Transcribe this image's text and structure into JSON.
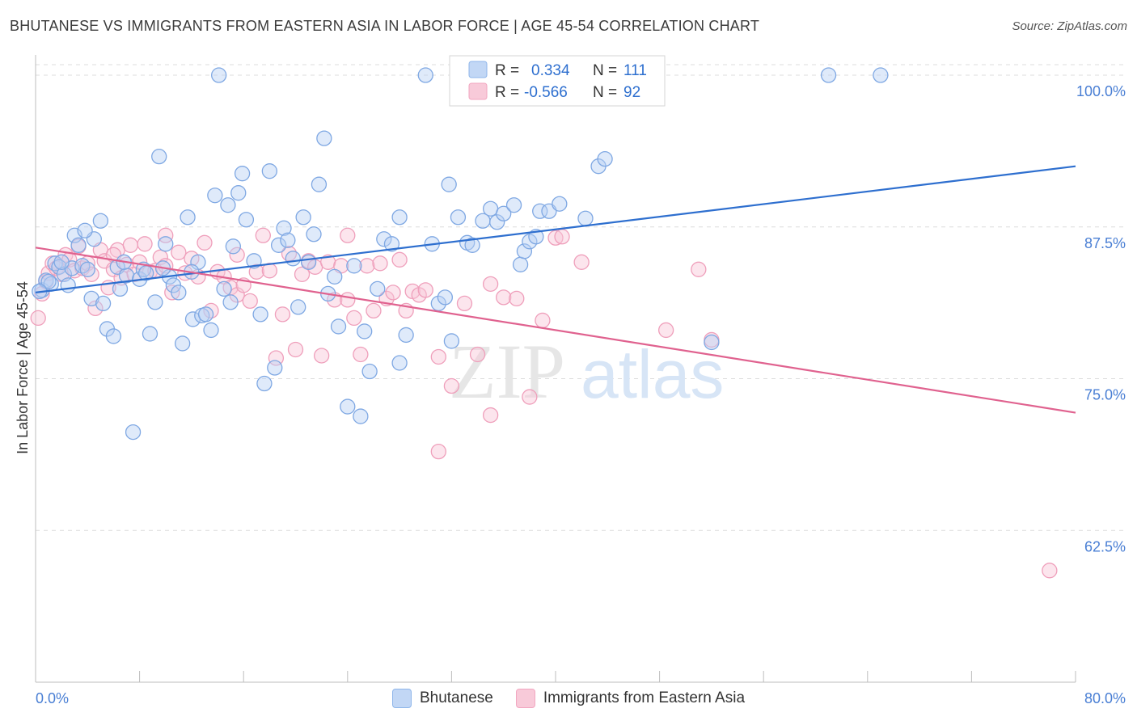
{
  "title": "BHUTANESE VS IMMIGRANTS FROM EASTERN ASIA IN LABOR FORCE | AGE 45-54 CORRELATION CHART",
  "source": "Source: ZipAtlas.com",
  "watermark": {
    "zip": "ZIP",
    "atlas": "atlas"
  },
  "colors": {
    "blue": "#8fb6ea",
    "blue_line": "#2e6fcf",
    "pink": "#f2a6c0",
    "pink_line": "#e0628f",
    "axis_text_blue": "#4a7fd4"
  },
  "legend": {
    "rows": [
      {
        "r_label": "R =",
        "r_value": "0.334",
        "n_label": "N =",
        "n_value": "111"
      },
      {
        "r_label": "R =",
        "r_value": "-0.566",
        "n_label": "N =",
        "n_value": "92"
      }
    ]
  },
  "bottom_legend": [
    "Bhutanese",
    "Immigrants from Eastern Asia"
  ],
  "chart_data": {
    "type": "scatter",
    "ylabel": "In Labor Force | Age 45-54",
    "xlim": [
      0,
      80
    ],
    "ylim": [
      50,
      101
    ],
    "x_tick_labels": [
      "0.0%",
      "80.0%"
    ],
    "y_tick_values": [
      62.5,
      75.0,
      87.5,
      100.0
    ],
    "y_tick_labels": [
      "62.5%",
      "75.0%",
      "87.5%",
      "100.0%"
    ],
    "series": [
      {
        "name": "Bhutanese",
        "trend": {
          "x": [
            0,
            80
          ],
          "y": [
            82.1,
            92.5
          ]
        },
        "points": [
          [
            0.5,
            82.3
          ],
          [
            0.8,
            83.1
          ],
          [
            1.2,
            82.8
          ],
          [
            1.5,
            84.5
          ],
          [
            1.8,
            84.2
          ],
          [
            2.2,
            83.6
          ],
          [
            2.5,
            82.7
          ],
          [
            2.8,
            84.1
          ],
          [
            3.0,
            86.8
          ],
          [
            3.3,
            86.0
          ],
          [
            3.6,
            84.3
          ],
          [
            4.0,
            84.0
          ],
          [
            4.3,
            81.6
          ],
          [
            4.5,
            86.5
          ],
          [
            5.0,
            88.0
          ],
          [
            5.2,
            81.2
          ],
          [
            5.5,
            79.1
          ],
          [
            6.0,
            78.5
          ],
          [
            6.3,
            84.2
          ],
          [
            6.5,
            82.4
          ],
          [
            7.0,
            83.5
          ],
          [
            7.5,
            70.6
          ],
          [
            8.0,
            83.2
          ],
          [
            8.3,
            84.0
          ],
          [
            8.8,
            78.7
          ],
          [
            9.2,
            81.3
          ],
          [
            9.5,
            93.3
          ],
          [
            10.0,
            86.1
          ],
          [
            10.3,
            83.4
          ],
          [
            10.6,
            82.7
          ],
          [
            11.0,
            82.1
          ],
          [
            11.3,
            77.9
          ],
          [
            11.7,
            88.3
          ],
          [
            12.1,
            79.9
          ],
          [
            12.5,
            84.6
          ],
          [
            12.8,
            80.2
          ],
          [
            13.1,
            80.3
          ],
          [
            13.5,
            79.0
          ],
          [
            13.8,
            90.1
          ],
          [
            14.1,
            100.0
          ],
          [
            14.5,
            82.4
          ],
          [
            14.8,
            89.3
          ],
          [
            15.2,
            85.9
          ],
          [
            15.6,
            90.3
          ],
          [
            15.9,
            91.9
          ],
          [
            16.2,
            88.1
          ],
          [
            16.8,
            84.7
          ],
          [
            17.3,
            80.3
          ],
          [
            17.6,
            74.6
          ],
          [
            18.0,
            92.1
          ],
          [
            18.4,
            75.9
          ],
          [
            18.7,
            86.0
          ],
          [
            19.1,
            87.4
          ],
          [
            19.4,
            86.4
          ],
          [
            19.8,
            84.9
          ],
          [
            20.2,
            80.9
          ],
          [
            20.6,
            88.3
          ],
          [
            21.0,
            84.6
          ],
          [
            21.4,
            86.9
          ],
          [
            21.8,
            91.0
          ],
          [
            22.2,
            94.8
          ],
          [
            22.5,
            82.0
          ],
          [
            23.0,
            83.4
          ],
          [
            23.3,
            79.3
          ],
          [
            24.0,
            72.7
          ],
          [
            24.5,
            84.3
          ],
          [
            25.0,
            71.9
          ],
          [
            25.3,
            78.9
          ],
          [
            25.7,
            75.6
          ],
          [
            26.3,
            82.4
          ],
          [
            26.8,
            86.5
          ],
          [
            27.4,
            86.1
          ],
          [
            28.0,
            76.3
          ],
          [
            28.5,
            78.6
          ],
          [
            30.0,
            100.0
          ],
          [
            31.0,
            81.2
          ],
          [
            31.5,
            81.7
          ],
          [
            31.8,
            91.0
          ],
          [
            32.5,
            88.3
          ],
          [
            33.2,
            86.2
          ],
          [
            33.6,
            86.0
          ],
          [
            34.4,
            88.0
          ],
          [
            35.0,
            89.0
          ],
          [
            35.5,
            87.9
          ],
          [
            36.0,
            88.6
          ],
          [
            36.8,
            89.3
          ],
          [
            37.3,
            84.4
          ],
          [
            37.6,
            85.5
          ],
          [
            38.0,
            86.3
          ],
          [
            38.5,
            86.7
          ],
          [
            38.8,
            88.8
          ],
          [
            39.5,
            88.8
          ],
          [
            40.3,
            89.4
          ],
          [
            42.3,
            88.2
          ],
          [
            43.3,
            92.5
          ],
          [
            43.8,
            93.1
          ],
          [
            52.0,
            78.0
          ],
          [
            61.0,
            100.0
          ],
          [
            65.0,
            100.0
          ],
          [
            28.0,
            88.3
          ],
          [
            30.5,
            86.1
          ],
          [
            32.0,
            78.1
          ],
          [
            8.5,
            83.7
          ],
          [
            12.0,
            83.8
          ],
          [
            15.0,
            81.3
          ],
          [
            1.0,
            83.0
          ],
          [
            2.0,
            84.6
          ],
          [
            3.8,
            87.2
          ],
          [
            6.8,
            84.6
          ],
          [
            9.8,
            84.1
          ],
          [
            0.3,
            82.2
          ]
        ]
      },
      {
        "name": "Immigrants from Eastern Asia",
        "trend": {
          "x": [
            0,
            80
          ],
          "y": [
            85.8,
            72.2
          ]
        },
        "points": [
          [
            0.2,
            80.0
          ],
          [
            0.5,
            82.0
          ],
          [
            0.8,
            83.0
          ],
          [
            1.0,
            83.7
          ],
          [
            1.3,
            84.5
          ],
          [
            1.6,
            84.1
          ],
          [
            2.0,
            83.6
          ],
          [
            2.3,
            85.2
          ],
          [
            2.6,
            84.8
          ],
          [
            3.0,
            83.9
          ],
          [
            3.3,
            85.9
          ],
          [
            3.6,
            84.1
          ],
          [
            4.0,
            84.5
          ],
          [
            4.3,
            83.6
          ],
          [
            4.6,
            80.8
          ],
          [
            5.0,
            85.6
          ],
          [
            5.3,
            84.7
          ],
          [
            5.6,
            82.5
          ],
          [
            6.0,
            84.0
          ],
          [
            6.3,
            85.6
          ],
          [
            6.6,
            83.3
          ],
          [
            7.0,
            84.4
          ],
          [
            7.3,
            86.0
          ],
          [
            7.6,
            83.6
          ],
          [
            8.0,
            84.6
          ],
          [
            8.4,
            86.1
          ],
          [
            8.8,
            83.8
          ],
          [
            9.2,
            83.9
          ],
          [
            9.6,
            85.0
          ],
          [
            10.0,
            84.3
          ],
          [
            10.5,
            82.1
          ],
          [
            11.0,
            85.4
          ],
          [
            11.5,
            83.7
          ],
          [
            12.0,
            84.9
          ],
          [
            12.5,
            83.4
          ],
          [
            13.0,
            86.2
          ],
          [
            13.5,
            80.6
          ],
          [
            14.0,
            83.8
          ],
          [
            14.5,
            83.4
          ],
          [
            15.0,
            82.5
          ],
          [
            15.5,
            81.9
          ],
          [
            16.0,
            82.7
          ],
          [
            16.5,
            81.4
          ],
          [
            17.0,
            83.8
          ],
          [
            17.5,
            86.8
          ],
          [
            18.0,
            83.9
          ],
          [
            18.5,
            76.7
          ],
          [
            19.0,
            80.3
          ],
          [
            19.5,
            85.3
          ],
          [
            20.0,
            77.4
          ],
          [
            20.5,
            83.6
          ],
          [
            21.0,
            84.7
          ],
          [
            21.5,
            84.2
          ],
          [
            22.0,
            76.9
          ],
          [
            22.5,
            84.6
          ],
          [
            23.0,
            81.5
          ],
          [
            23.5,
            84.3
          ],
          [
            24.0,
            81.5
          ],
          [
            24.5,
            80.0
          ],
          [
            25.0,
            77.0
          ],
          [
            25.5,
            84.3
          ],
          [
            26.0,
            80.6
          ],
          [
            26.5,
            84.5
          ],
          [
            27.0,
            81.6
          ],
          [
            27.5,
            82.1
          ],
          [
            28.0,
            84.8
          ],
          [
            28.5,
            80.6
          ],
          [
            29.0,
            82.2
          ],
          [
            29.5,
            81.9
          ],
          [
            30.0,
            82.3
          ],
          [
            31.0,
            76.8
          ],
          [
            32.0,
            74.4
          ],
          [
            33.0,
            81.2
          ],
          [
            34.0,
            77.0
          ],
          [
            35.0,
            82.8
          ],
          [
            36.0,
            81.7
          ],
          [
            37.0,
            81.6
          ],
          [
            38.0,
            73.5
          ],
          [
            39.0,
            79.8
          ],
          [
            40.0,
            86.6
          ],
          [
            40.5,
            86.7
          ],
          [
            42.0,
            84.6
          ],
          [
            48.5,
            79.0
          ],
          [
            51.0,
            84.0
          ],
          [
            52.0,
            78.2
          ],
          [
            35.0,
            72.0
          ],
          [
            78.0,
            59.2
          ],
          [
            31.0,
            69.0
          ],
          [
            10.0,
            86.8
          ],
          [
            24.0,
            86.8
          ],
          [
            15.5,
            85.2
          ],
          [
            6.0,
            85.2
          ]
        ]
      }
    ]
  }
}
